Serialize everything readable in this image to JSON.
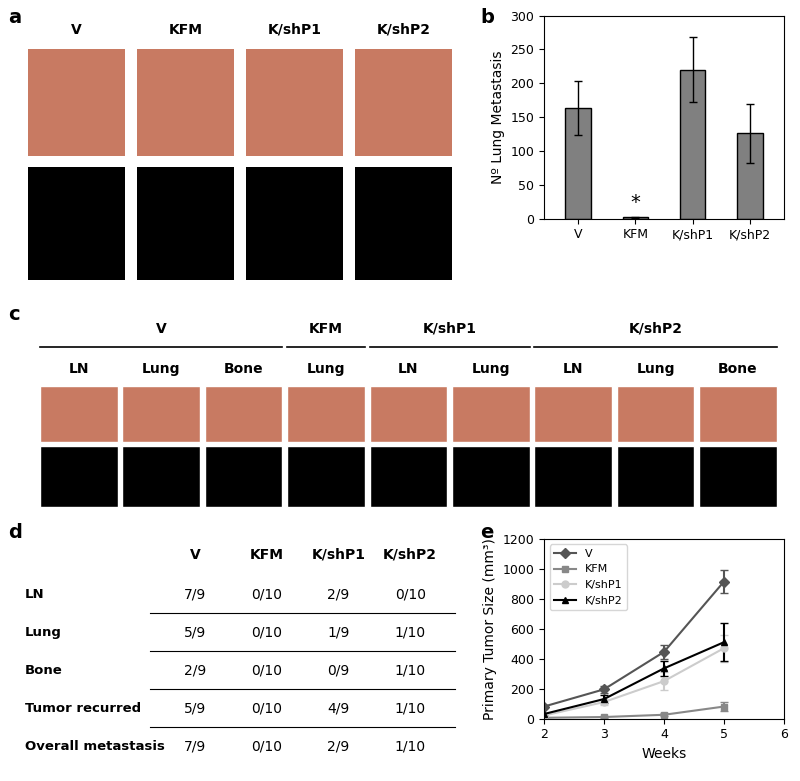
{
  "chart_data": [
    {
      "type": "bar",
      "panel_label": "b",
      "categories": [
        "V",
        "KFM",
        "K/shP1",
        "K/shP2"
      ],
      "values": [
        163,
        2,
        220,
        126
      ],
      "errors": [
        40,
        1,
        48,
        44
      ],
      "color": "#808080",
      "y_label": "Nº Lung Metastasis",
      "ylim": [
        0,
        300
      ],
      "yticks": [
        0,
        50,
        100,
        150,
        200,
        250,
        300
      ],
      "annotations": [
        {
          "text": "*",
          "category": "KFM"
        }
      ]
    },
    {
      "type": "line",
      "panel_label": "e",
      "x": [
        2,
        3,
        4,
        5
      ],
      "series": [
        {
          "name": "V",
          "color": "#555555",
          "marker": "diamond",
          "values": [
            80,
            195,
            445,
            915
          ],
          "errors": [
            10,
            25,
            45,
            75
          ]
        },
        {
          "name": "KFM",
          "color": "#888888",
          "marker": "square",
          "values": [
            5,
            10,
            25,
            80
          ],
          "errors": [
            2,
            5,
            10,
            30
          ]
        },
        {
          "name": "K/shP1",
          "color": "#cccccc",
          "marker": "circle",
          "values": [
            20,
            110,
            250,
            470
          ],
          "errors": [
            5,
            20,
            60,
            90
          ]
        },
        {
          "name": "K/shP2",
          "color": "#000000",
          "marker": "triangle",
          "values": [
            30,
            130,
            335,
            510
          ],
          "errors": [
            8,
            25,
            50,
            125
          ]
        }
      ],
      "x_label": "Weeks",
      "y_label": "Primary Tumor Size (mm³)",
      "xlim": [
        2,
        6
      ],
      "xticks": [
        2,
        3,
        4,
        5,
        6
      ],
      "ylim": [
        0,
        1200
      ],
      "yticks": [
        0,
        200,
        400,
        600,
        800,
        1000,
        1200
      ],
      "legend": "upper left"
    }
  ],
  "photos_a": {
    "panel_label": "a",
    "groups": [
      "V",
      "KFM",
      "K/shP1",
      "K/shP2"
    ]
  },
  "photos_c": {
    "panel_label": "c",
    "groups": [
      {
        "name": "V",
        "tissues": [
          "LN",
          "Lung",
          "Bone"
        ]
      },
      {
        "name": "KFM",
        "tissues": [
          "Lung"
        ]
      },
      {
        "name": "K/shP1",
        "tissues": [
          "LN",
          "Lung"
        ]
      },
      {
        "name": "K/shP2",
        "tissues": [
          "LN",
          "Lung",
          "Bone"
        ]
      }
    ]
  },
  "table_d": {
    "panel_label": "d",
    "columns": [
      "V",
      "KFM",
      "K/shP1",
      "K/shP2"
    ],
    "rows": [
      [
        "LN",
        "7/9",
        "0/10",
        "2/9",
        "0/10"
      ],
      [
        "Lung",
        "5/9",
        "0/10",
        "1/9",
        "1/10"
      ],
      [
        "Bone",
        "2/9",
        "0/10",
        "0/9",
        "1/10"
      ],
      [
        "Tumor recurred",
        "5/9",
        "0/10",
        "4/9",
        "1/10"
      ],
      [
        "Overall metastasis",
        "7/9",
        "0/10",
        "2/9",
        "1/10"
      ]
    ]
  }
}
